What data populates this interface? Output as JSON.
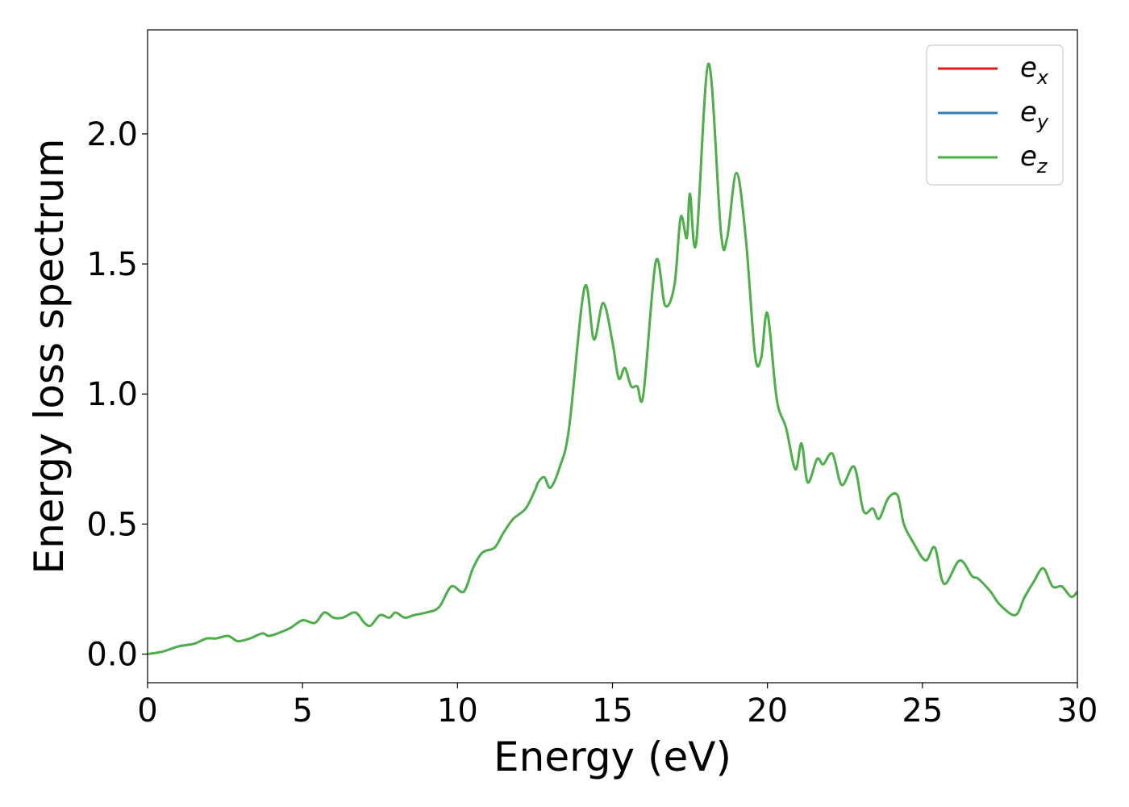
{
  "chart_data": {
    "type": "line",
    "xlabel": "Energy (eV)",
    "ylabel": "Energy loss spectrum",
    "xlim": [
      0,
      30
    ],
    "ylim": [
      -0.11,
      2.4
    ],
    "xticks": [
      0,
      5,
      10,
      15,
      20,
      25,
      30
    ],
    "xtick_labels": [
      "0",
      "5",
      "10",
      "15",
      "20",
      "25",
      "30"
    ],
    "yticks": [
      0.0,
      0.5,
      1.0,
      1.5,
      2.0
    ],
    "ytick_labels": [
      "0.0",
      "0.5",
      "1.0",
      "1.5",
      "2.0"
    ],
    "grid": false,
    "legend_position": "top-right",
    "x": [
      0,
      0.5,
      1.0,
      1.5,
      1.9,
      2.2,
      2.6,
      2.9,
      3.3,
      3.7,
      3.9,
      4.2,
      4.6,
      5.0,
      5.4,
      5.7,
      6.0,
      6.3,
      6.7,
      7.0,
      7.2,
      7.5,
      7.8,
      8.0,
      8.3,
      8.6,
      9.0,
      9.4,
      9.8,
      10.2,
      10.5,
      10.8,
      11.2,
      11.5,
      11.8,
      12.2,
      12.5,
      12.6,
      12.8,
      13.0,
      13.3,
      13.6,
      14.1,
      14.4,
      14.7,
      15.0,
      15.2,
      15.4,
      15.6,
      15.8,
      16.0,
      16.4,
      16.7,
      17.0,
      17.2,
      17.4,
      17.5,
      17.7,
      18.1,
      18.5,
      18.7,
      19.0,
      19.3,
      19.6,
      19.8,
      20.0,
      20.3,
      20.6,
      20.9,
      21.1,
      21.3,
      21.6,
      21.8,
      22.1,
      22.4,
      22.8,
      23.1,
      23.4,
      23.6,
      23.9,
      24.2,
      24.4,
      24.7,
      25.1,
      25.4,
      25.7,
      26.2,
      26.6,
      26.8,
      27.2,
      27.5,
      28.0,
      28.3,
      28.6,
      28.9,
      29.2,
      29.5,
      29.8,
      30.0
    ],
    "series": [
      {
        "name": "e_x",
        "color": "#e41a1c",
        "stroke": 2.5,
        "values": null
      },
      {
        "name": "e_y",
        "color": "#377eb8",
        "stroke": 2.5,
        "values": null
      },
      {
        "name": "e_z",
        "color": "#4daf4a",
        "stroke": 3,
        "values": [
          0.0,
          0.01,
          0.03,
          0.04,
          0.06,
          0.06,
          0.07,
          0.05,
          0.06,
          0.08,
          0.07,
          0.08,
          0.1,
          0.13,
          0.12,
          0.16,
          0.14,
          0.14,
          0.16,
          0.12,
          0.11,
          0.15,
          0.14,
          0.16,
          0.14,
          0.15,
          0.16,
          0.18,
          0.26,
          0.24,
          0.33,
          0.39,
          0.41,
          0.47,
          0.52,
          0.56,
          0.63,
          0.66,
          0.68,
          0.64,
          0.72,
          0.87,
          1.41,
          1.21,
          1.35,
          1.2,
          1.06,
          1.1,
          1.03,
          1.03,
          1.0,
          1.51,
          1.34,
          1.42,
          1.68,
          1.6,
          1.77,
          1.58,
          2.27,
          1.62,
          1.6,
          1.85,
          1.6,
          1.15,
          1.14,
          1.31,
          0.98,
          0.87,
          0.71,
          0.81,
          0.66,
          0.75,
          0.73,
          0.77,
          0.65,
          0.72,
          0.55,
          0.56,
          0.52,
          0.6,
          0.61,
          0.5,
          0.43,
          0.36,
          0.41,
          0.27,
          0.36,
          0.3,
          0.29,
          0.24,
          0.19,
          0.15,
          0.22,
          0.28,
          0.33,
          0.26,
          0.26,
          0.22,
          0.24
        ]
      }
    ],
    "legend": [
      {
        "base": "e",
        "sub": "x",
        "color": "#e41a1c"
      },
      {
        "base": "e",
        "sub": "y",
        "color": "#377eb8"
      },
      {
        "base": "e",
        "sub": "z",
        "color": "#4daf4a"
      }
    ]
  }
}
